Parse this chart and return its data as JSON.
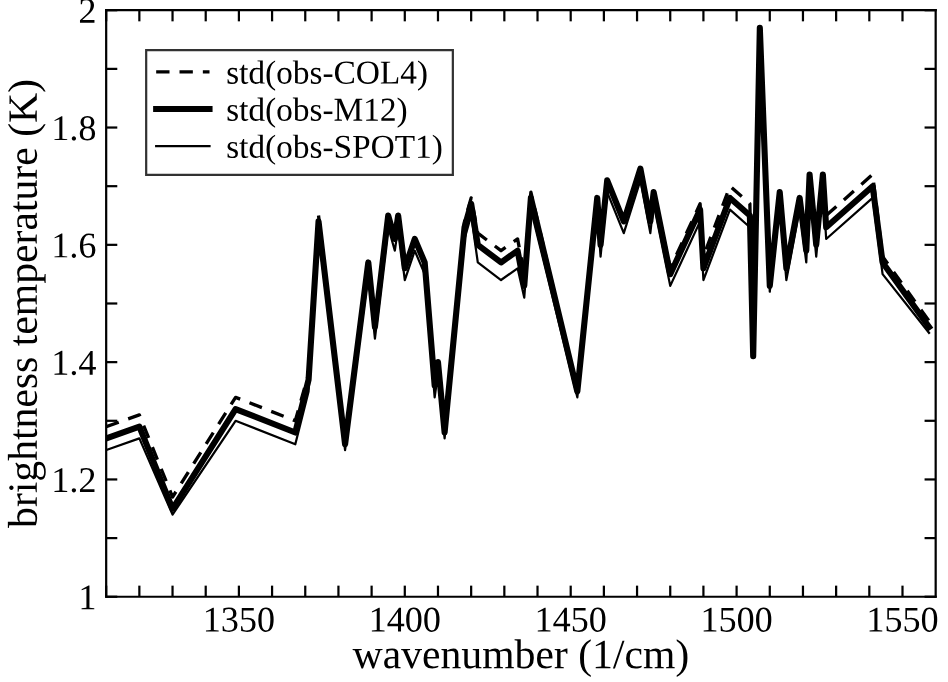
{
  "chart_data": {
    "type": "line",
    "xlabel": "wavenumber (1/cm)",
    "ylabel": "brightness temperature (K)",
    "x": [
      1310,
      1320,
      1330,
      1349,
      1367,
      1371,
      1374,
      1382,
      1389,
      1391,
      1395,
      1397,
      1398,
      1400,
      1403,
      1406,
      1409,
      1410,
      1412,
      1418,
      1420,
      1422,
      1429,
      1434,
      1436,
      1438,
      1452,
      1458,
      1459,
      1461,
      1466,
      1471,
      1474,
      1475,
      1480,
      1489,
      1490,
      1498,
      1504,
      1505,
      1507,
      1510,
      1513,
      1515,
      1519,
      1521,
      1522,
      1524,
      1526,
      1527,
      1541,
      1544,
      1558
    ],
    "series": [
      {
        "name": "std(obs-COL4)",
        "color": "#000000",
        "line_style": "dashed",
        "values": [
          1.29,
          1.31,
          1.17,
          1.34,
          1.3,
          1.38,
          1.65,
          1.26,
          1.57,
          1.46,
          1.65,
          1.61,
          1.65,
          1.56,
          1.61,
          1.57,
          1.36,
          1.4,
          1.28,
          1.64,
          1.68,
          1.62,
          1.59,
          1.61,
          1.55,
          1.69,
          1.35,
          1.68,
          1.6,
          1.71,
          1.64,
          1.73,
          1.64,
          1.69,
          1.56,
          1.67,
          1.58,
          1.7,
          1.67,
          1.41,
          1.97,
          1.53,
          1.69,
          1.56,
          1.68,
          1.59,
          1.72,
          1.61,
          1.72,
          1.65,
          1.72,
          1.58,
          1.47
        ]
      },
      {
        "name": "std(obs-M12)",
        "color": "#000000",
        "line_style": "solid",
        "values": [
          1.27,
          1.29,
          1.15,
          1.32,
          1.28,
          1.37,
          1.64,
          1.26,
          1.57,
          1.46,
          1.65,
          1.61,
          1.65,
          1.56,
          1.61,
          1.57,
          1.36,
          1.4,
          1.28,
          1.63,
          1.67,
          1.6,
          1.57,
          1.59,
          1.53,
          1.68,
          1.35,
          1.68,
          1.6,
          1.71,
          1.64,
          1.73,
          1.64,
          1.69,
          1.55,
          1.66,
          1.56,
          1.68,
          1.65,
          1.41,
          1.97,
          1.53,
          1.69,
          1.56,
          1.68,
          1.59,
          1.72,
          1.6,
          1.72,
          1.63,
          1.7,
          1.57,
          1.46
        ]
      },
      {
        "name": "std(obs-SPOT1)",
        "color": "#000000",
        "line_style": "solid",
        "values": [
          1.25,
          1.27,
          1.14,
          1.3,
          1.26,
          1.35,
          1.62,
          1.25,
          1.55,
          1.44,
          1.63,
          1.59,
          1.63,
          1.54,
          1.59,
          1.55,
          1.34,
          1.38,
          1.27,
          1.61,
          1.65,
          1.57,
          1.54,
          1.56,
          1.51,
          1.66,
          1.34,
          1.66,
          1.58,
          1.69,
          1.62,
          1.71,
          1.62,
          1.67,
          1.53,
          1.64,
          1.54,
          1.66,
          1.63,
          1.41,
          1.95,
          1.52,
          1.67,
          1.54,
          1.66,
          1.57,
          1.7,
          1.58,
          1.7,
          1.61,
          1.68,
          1.55,
          1.45
        ]
      }
    ],
    "xlim": [
      1310,
      1560
    ],
    "xticks": [
      {
        "value": 1310,
        "label": null
      },
      {
        "value": 1320,
        "label": null
      },
      {
        "value": 1330,
        "label": null
      },
      {
        "value": 1340,
        "label": null
      },
      1350,
      {
        "value": 1360,
        "label": null
      },
      {
        "value": 1370,
        "label": null
      },
      {
        "value": 1380,
        "label": null
      },
      {
        "value": 1390,
        "label": null
      },
      1400,
      {
        "value": 1410,
        "label": null
      },
      {
        "value": 1420,
        "label": null
      },
      {
        "value": 1430,
        "label": null
      },
      {
        "value": 1440,
        "label": null
      },
      1450,
      {
        "value": 1460,
        "label": null
      },
      {
        "value": 1470,
        "label": null
      },
      {
        "value": 1480,
        "label": null
      },
      {
        "value": 1490,
        "label": null
      },
      1500,
      {
        "value": 1510,
        "label": null
      },
      {
        "value": 1520,
        "label": null
      },
      {
        "value": 1530,
        "label": null
      },
      {
        "value": 1540,
        "label": null
      },
      1550
    ],
    "ylim": [
      1,
      2
    ],
    "yticks": [
      1,
      {
        "value": 1.1,
        "label": null
      },
      1.2,
      {
        "value": 1.3,
        "label": null
      },
      1.4,
      {
        "value": 1.5,
        "label": null
      },
      1.6,
      {
        "value": 1.7,
        "label": null
      },
      1.8,
      {
        "value": 1.9,
        "label": null
      },
      2
    ],
    "legend": "top left",
    "grid": false,
    "marker": "none"
  }
}
